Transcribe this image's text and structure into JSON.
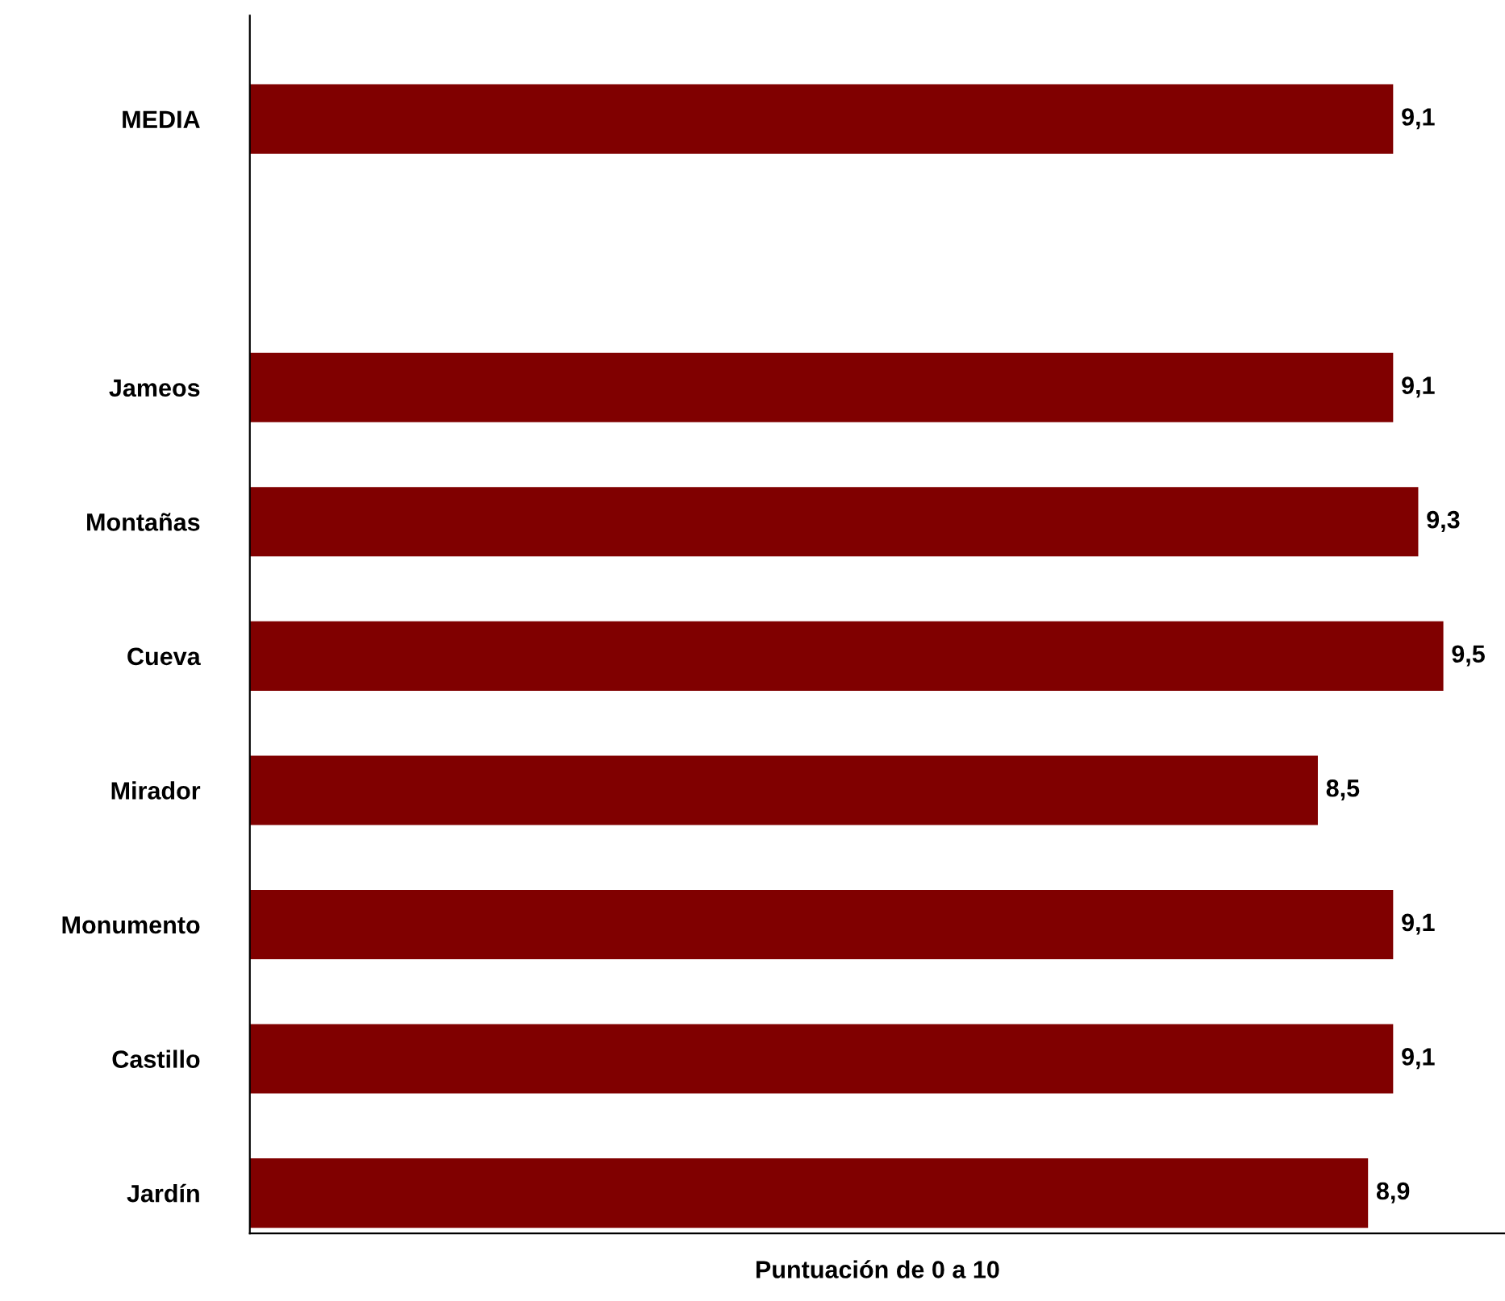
{
  "chart_data": {
    "type": "bar",
    "orientation": "horizontal",
    "xlabel": "Puntuación de 0 a 10",
    "categories": [
      "MEDIA",
      null,
      "Jameos",
      "Montañas",
      "Cueva",
      "Mirador",
      "Monumento",
      "Castillo",
      "Jardín"
    ],
    "values": [
      9.1,
      null,
      9.1,
      9.3,
      9.5,
      8.5,
      9.1,
      9.1,
      8.9
    ],
    "value_labels": [
      "9,1",
      null,
      "9,1",
      "9,3",
      "9,5",
      "8,5",
      "9,1",
      "9,1",
      "8,9"
    ],
    "color": "#800000",
    "xlim": [
      0,
      10
    ],
    "tick_labels": "y",
    "grid": false,
    "legend": false
  }
}
